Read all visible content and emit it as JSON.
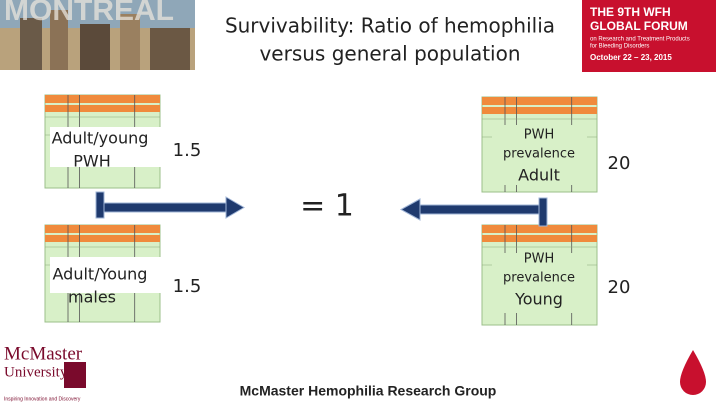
{
  "header": {
    "city": "MONTREAL",
    "title": [
      "Survivability: Ratio of hemophilia",
      "versus general population"
    ]
  },
  "forum_logo": {
    "lines": [
      "THE 9TH WFH",
      "GLOBAL FORUM"
    ],
    "sub": [
      "on Research and Treatment Products",
      "for Bleeding Disorders"
    ],
    "date": "October 22 – 23, 2015"
  },
  "left": [
    {
      "label": [
        "Adult/young",
        "PWH"
      ],
      "value": 1.5
    },
    {
      "label": [
        "Adult/Young",
        "males"
      ],
      "value": 1.5
    }
  ],
  "right": [
    {
      "label": [
        "PWH",
        "prevalence"
      ],
      "group": "Adult",
      "value": 20
    },
    {
      "label": [
        "PWH",
        "prevalence"
      ],
      "group": "Young",
      "value": 20
    }
  ],
  "center": "= 1",
  "footer": {
    "university": [
      "McMaster",
      "University"
    ],
    "tagline": "Inspiring Innovation and Discovery",
    "group": "McMaster Hemophilia Research Group"
  }
}
